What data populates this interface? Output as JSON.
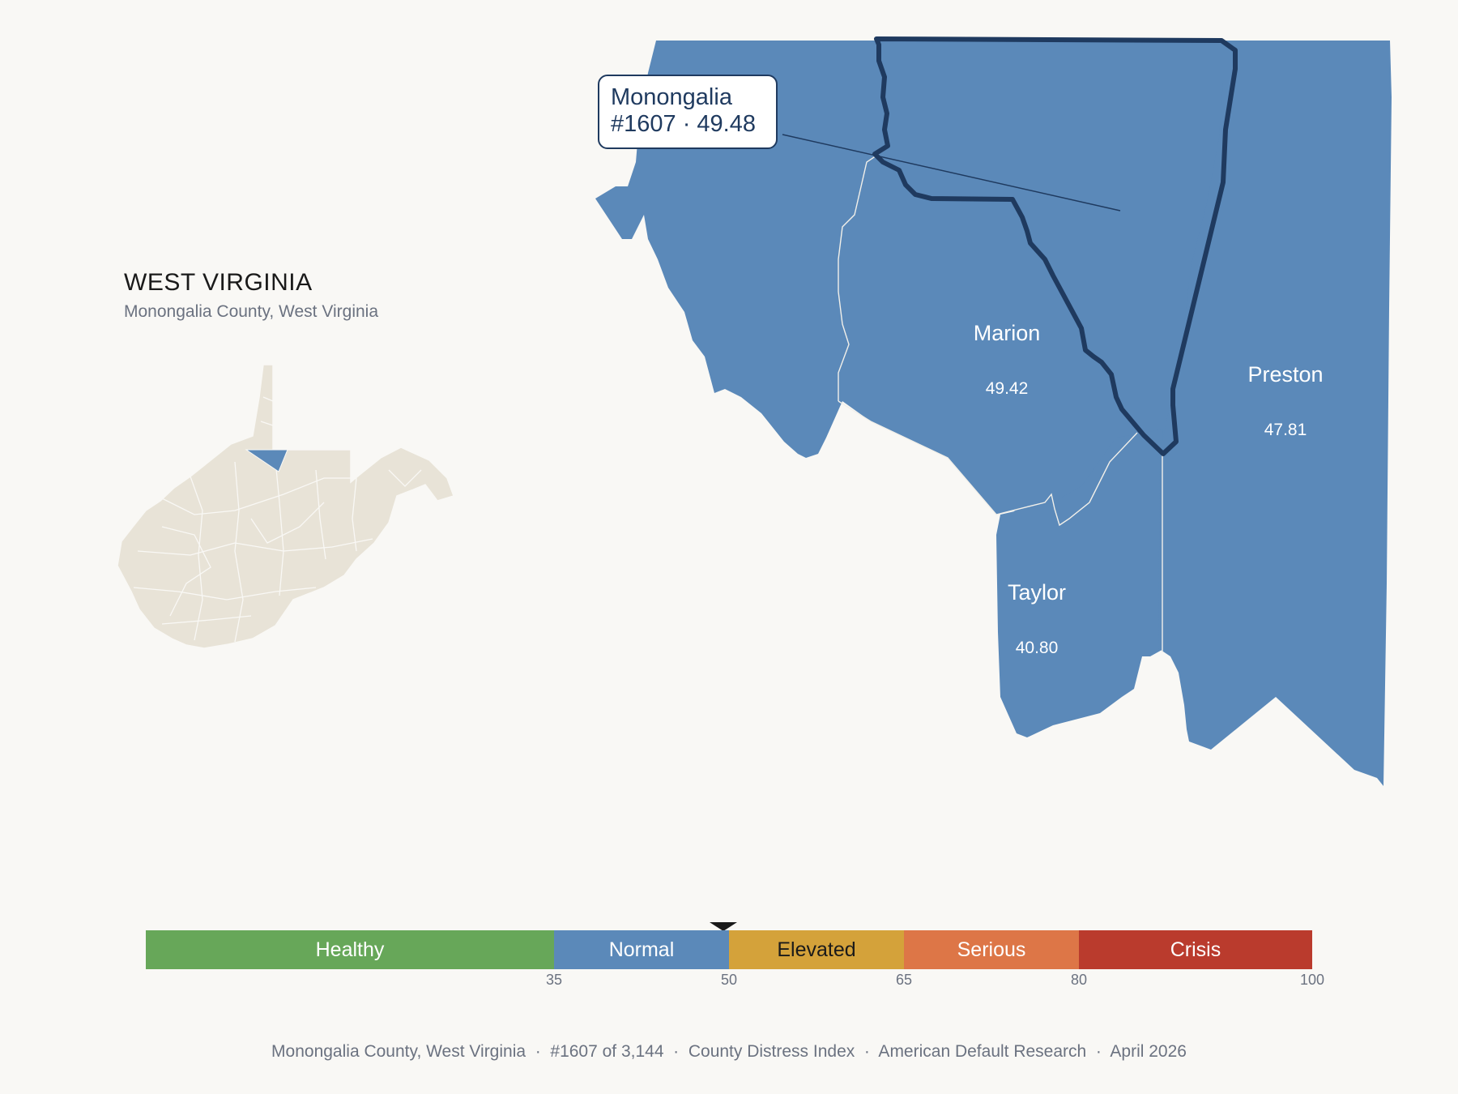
{
  "state": {
    "title": "WEST VIRGINIA",
    "subtitle": "Monongalia County, West Virginia"
  },
  "colors": {
    "background": "#f9f8f5",
    "county_fill": "#5b89b9",
    "highlight_outline": "#1f3a5f",
    "inset_fill": "#e8e3d7"
  },
  "callout": {
    "county": "Monongalia",
    "rank_value": "#1607 · 49.48"
  },
  "map": {
    "focus_county": {
      "name": "Monongalia",
      "rank": 1607,
      "score": 49.48,
      "category": "Normal"
    },
    "counties": [
      {
        "name": "Marion",
        "value": "49.42"
      },
      {
        "name": "Preston",
        "value": "47.81"
      },
      {
        "name": "Taylor",
        "value": "40.80"
      }
    ]
  },
  "scale": {
    "bands": [
      {
        "label": "Healthy",
        "from": 0,
        "to": 35,
        "color": "#67a759",
        "text_color": "#ffffff"
      },
      {
        "label": "Normal",
        "from": 35,
        "to": 50,
        "color": "#5b89b9",
        "text_color": "#ffffff"
      },
      {
        "label": "Elevated",
        "from": 50,
        "to": 65,
        "color": "#d4a23a",
        "text_color": "#1a1a1a"
      },
      {
        "label": "Serious",
        "from": 65,
        "to": 80,
        "color": "#dd7647",
        "text_color": "#ffffff"
      },
      {
        "label": "Crisis",
        "from": 80,
        "to": 100,
        "color": "#ba3b2d",
        "text_color": "#ffffff"
      }
    ],
    "ticks": [
      "35",
      "50",
      "65",
      "80",
      "100"
    ],
    "marker_value": 49.48
  },
  "footer": {
    "text": "Monongalia County, West Virginia  ·  #1607 of 3,144  ·  County Distress Index  ·  American Default Research  ·  April 2026"
  }
}
